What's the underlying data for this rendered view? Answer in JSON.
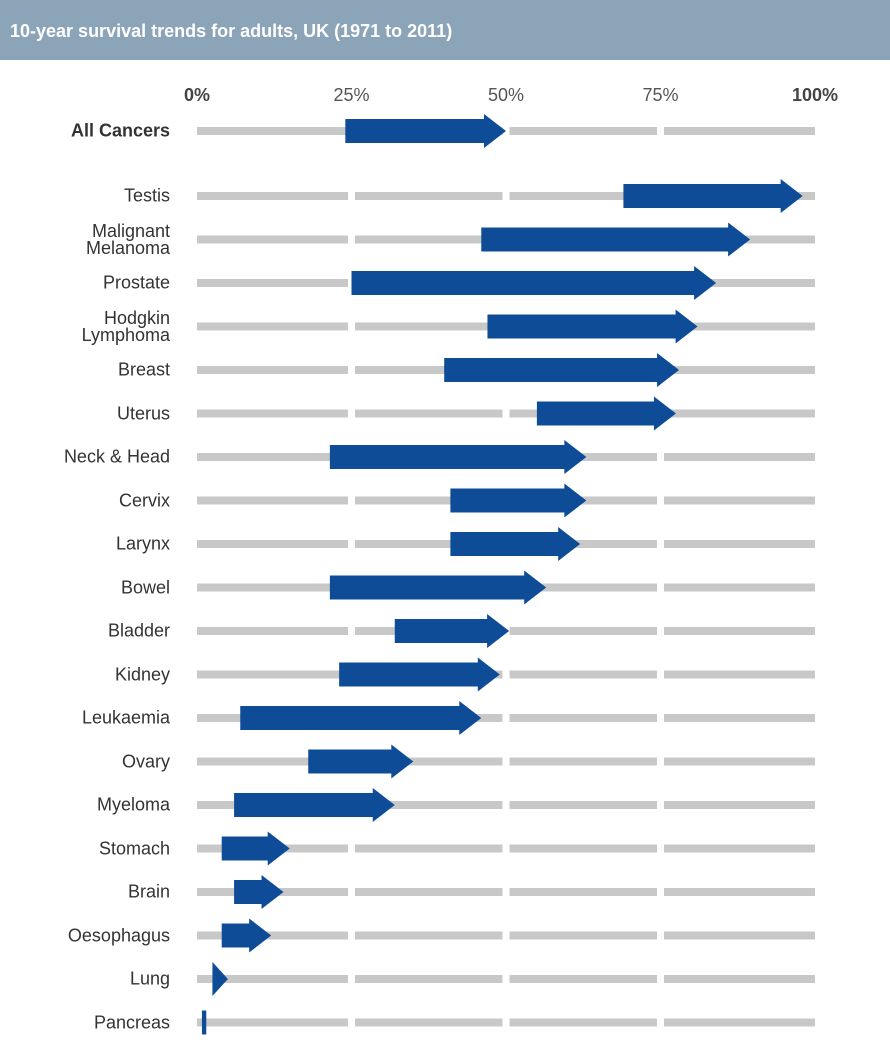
{
  "chart_data": {
    "type": "arrow",
    "title": "10-year survival trends for adults, UK (1971 to 2011)",
    "categories": [
      "All Cancers",
      "Testis",
      "Malignant Melanoma",
      "Prostate",
      "Hodgkin Lymphoma",
      "Breast",
      "Uterus",
      "Neck & Head",
      "Cervix",
      "Larynx",
      "Bowel",
      "Bladder",
      "Kidney",
      "Leukaemia",
      "Ovary",
      "Myeloma",
      "Stomach",
      "Brain",
      "Oesophagus",
      "Lung",
      "Pancreas"
    ],
    "start": [
      24,
      69,
      46,
      25,
      47,
      40,
      55,
      21.5,
      41,
      41,
      21.5,
      32,
      23,
      7,
      18,
      6,
      4,
      6,
      4,
      2.5,
      0.8
    ],
    "end": [
      50,
      98,
      89.5,
      84,
      81,
      78,
      77.5,
      63,
      63,
      62,
      56.5,
      50.5,
      49,
      46,
      35,
      32,
      15,
      14,
      12,
      5,
      1.5
    ],
    "color": "#0f4c97",
    "xlim": [
      0,
      100
    ],
    "xticks": [
      {
        "value": 0,
        "label": "0%"
      },
      {
        "value": 25,
        "label": "25%"
      },
      {
        "value": 50,
        "label": "50%"
      },
      {
        "value": 75,
        "label": "75%"
      },
      {
        "value": 100,
        "label": "100%"
      }
    ]
  }
}
